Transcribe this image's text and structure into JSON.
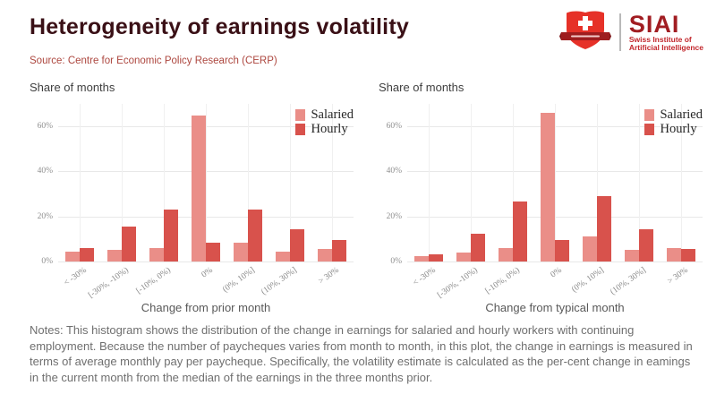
{
  "header": {
    "title": "Heterogeneity of earnings volatility",
    "source": "Source: Centre for Economic Policy Research (CERP)",
    "logo": {
      "acronym": "SIAI",
      "org_line1": "Swiss Institute of",
      "org_line2": "Artificial Intelligence"
    }
  },
  "colors": {
    "salaried": "#ea8e88",
    "hourly": "#d8524c",
    "title": "#3a1016",
    "source": "#ad473f"
  },
  "chart_data": [
    {
      "type": "bar",
      "title": "Share of months",
      "ylabel": "Share of months",
      "xlabel": "Change from prior month",
      "categories": [
        "< -30%",
        "[-30%, -10%)",
        "[-10%, 0%)",
        "0%",
        "(0%, 10%]",
        "(10%, 30%]",
        "> 30%"
      ],
      "series": [
        {
          "name": "Salaried",
          "color": "#ea8e88",
          "values": [
            4.5,
            5,
            6,
            65,
            8.5,
            4.5,
            5.5
          ]
        },
        {
          "name": "Hourly",
          "color": "#d8524c",
          "values": [
            6,
            15.5,
            23,
            8.5,
            23,
            14.5,
            9.5
          ]
        }
      ],
      "ylim": [
        0,
        70
      ],
      "yticks": [
        "0%",
        "20%",
        "40%",
        "60%"
      ],
      "legend_position": "top-right",
      "grid": true
    },
    {
      "type": "bar",
      "title": "Share of months",
      "ylabel": "Share of months",
      "xlabel": "Change from typical month",
      "categories": [
        "< -30%",
        "[-30%, -10%)",
        "[-10%, 0%)",
        "0%",
        "(0%, 10%]",
        "(10%, 30%]",
        "> 30%"
      ],
      "series": [
        {
          "name": "Salaried",
          "color": "#ea8e88",
          "values": [
            2.5,
            4,
            6,
            66,
            11,
            5,
            6
          ]
        },
        {
          "name": "Hourly",
          "color": "#d8524c",
          "values": [
            3,
            12.5,
            26.5,
            9.5,
            29,
            14.5,
            5.5
          ]
        }
      ],
      "ylim": [
        0,
        70
      ],
      "yticks": [
        "0%",
        "20%",
        "40%",
        "60%"
      ],
      "legend_position": "top-right",
      "grid": true
    }
  ],
  "notes": "Notes: This histogram shows the distribution of the change in earnings for salaried and hourly workers with continuing employment. Because the number of paycheques varies from month to month, in this plot, the change in earnings is measured in terms of average monthly pay per paycheque. Specifically, the volatility estimate is calculated as the per-cent change in eamings in the current month from the median of the earnings in the three months prior."
}
